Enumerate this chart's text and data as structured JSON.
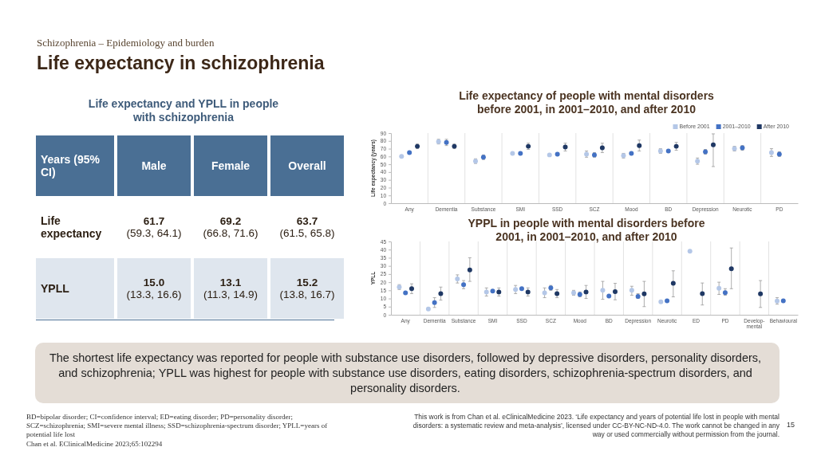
{
  "chart_data": [
    {
      "type": "other",
      "title": "Life expectancy and YPLL in people with schizophrenia",
      "ylabel": "Years (95% CI)",
      "categories": [
        "Male",
        "Female",
        "Overall"
      ],
      "y_categories": [
        "Life expectancy",
        "YPLL"
      ],
      "cell_labels": [
        [
          "61.7\n(59.3, 64.1)",
          "69.2\n(66.8, 71.6)",
          "63.7\n(61.5, 65.8)"
        ],
        [
          "15.0\n(13.3, 16.6)",
          "13.1\n(11.3, 14.9)",
          "15.2\n(13.8, 16.7)"
        ]
      ],
      "annotations": [
        "Schizophrenia – Epidemiology and burden",
        "Life expectancy in schizophrenia",
        "The shortest life expectancy was reported for people with substance use disorders, followed by depressive disorders, personality disorders, and schizophrenia; YPLL was highest for people with substance use disorders, eating disorders, schizophrenia-spectrum disorders, and personality disorders.",
        "BD=bipolar disorder; CI=confidence interval; ED=eating disorder; PD=personality disorder; SCZ=schizophrenia; SMI=severe mental illness; SSD=schizophrenia-spectrum disorder; YPLL=years of potential life lost",
        "Chan et al. EClinicalMedicine 2023;65:102294",
        "This work is from Chan et al. eClinicalMedicine 2023. ‘Life expectancy and years of potential life lost in people with mental disorders: a systematic review and meta-analysis’, licensed under CC-BY-NC-ND-4.0. The work cannot be changed in any way or used commercially without permission from the journal.",
        "15"
      ]
    },
    {
      "type": "scatter",
      "title": "Life expectancy of people with mental disorders before 2001, in 2001–2010, and after 2010",
      "ylabel": "Life expectancy (years)",
      "categories": [
        "Any",
        "Dementia",
        "Substance",
        "SMI",
        "SSD",
        "SCZ",
        "Mood",
        "BD",
        "Depression",
        "Neurotic",
        "PD"
      ],
      "ylim": [
        0,
        90
      ],
      "yticks": [
        0,
        10,
        20,
        30,
        40,
        50,
        60,
        70,
        80,
        90
      ],
      "marker": "circle",
      "legend": "top right",
      "series": [
        {
          "name": "Before 2001",
          "color": "#b4c7e7",
          "values": [
            60,
            79,
            54,
            64,
            62,
            63,
            61,
            67,
            54,
            70,
            65
          ],
          "errors": [
            null,
            3,
            3,
            null,
            null,
            4,
            3,
            3,
            4,
            3,
            5
          ]
        },
        {
          "name": "2001–2010",
          "color": "#4472c4",
          "values": [
            65,
            78,
            59,
            64,
            63,
            62,
            64,
            67,
            66,
            71,
            63
          ],
          "errors": [
            null,
            4,
            3,
            null,
            null,
            3,
            null,
            null,
            3,
            3,
            3
          ]
        },
        {
          "name": "After 2010",
          "color": "#1f3864",
          "values": [
            73,
            73,
            null,
            73,
            72,
            71,
            74,
            73,
            75,
            null,
            null
          ],
          "errors": [
            3,
            3,
            null,
            4,
            5,
            6,
            7,
            5,
            [
              47,
              89
            ],
            null,
            null
          ]
        }
      ]
    },
    {
      "type": "scatter",
      "title": "YPPL in people with mental disorders before 2001, in 2001–2010, and after 2010",
      "ylabel": "YPLL",
      "categories": [
        "Any",
        "Dementia",
        "Substance",
        "SMI",
        "SSD",
        "SCZ",
        "Mood",
        "BD",
        "Depression",
        "Neurotic",
        "ED",
        "PD",
        "Develop-mental",
        "Behavioural"
      ],
      "ylim": [
        0,
        45
      ],
      "yticks": [
        0,
        5,
        10,
        15,
        20,
        25,
        30,
        35,
        40,
        45
      ],
      "marker": "circle",
      "series": [
        {
          "color": "#b4c7e7",
          "values": [
            17,
            3.5,
            22,
            14,
            15.5,
            13.5,
            13.5,
            15,
            15,
            8,
            39,
            16.3,
            null,
            8.4
          ],
          "errors": [
            1.5,
            null,
            2.5,
            2.5,
            2.5,
            3,
            1.5,
            5.5,
            [
              12,
              17.5
            ],
            null,
            null,
            [
              12.5,
              20
            ],
            null,
            [
              6.5,
              10.5
            ]
          ]
        },
        {
          "color": "#4472c4",
          "values": [
            13.5,
            7.5,
            18.5,
            14.5,
            16,
            16.5,
            12.5,
            11.5,
            11.2,
            8.6,
            null,
            13.6,
            null,
            8.6
          ],
          "errors": [
            null,
            3,
            2.5,
            null,
            null,
            1.5,
            1.5,
            null,
            [
              10,
              13
            ],
            null,
            null,
            [
              12,
              16
            ],
            null,
            null
          ]
        },
        {
          "color": "#1f3864",
          "values": [
            16,
            13,
            27.5,
            14,
            14,
            13,
            14,
            14.2,
            12.8,
            19.3,
            13,
            28.3,
            12.8,
            null
          ],
          "errors": [
            3,
            4,
            [
              20.5,
              35
            ],
            2.5,
            2.5,
            2.5,
            4,
            [
              9.2,
              19.3
            ],
            [
              5,
              20.5
            ],
            [
              11,
              27
            ],
            [
              6,
              19.5
            ],
            [
              16,
              41
            ],
            [
              4.5,
              21
            ],
            null
          ]
        }
      ]
    }
  ]
}
